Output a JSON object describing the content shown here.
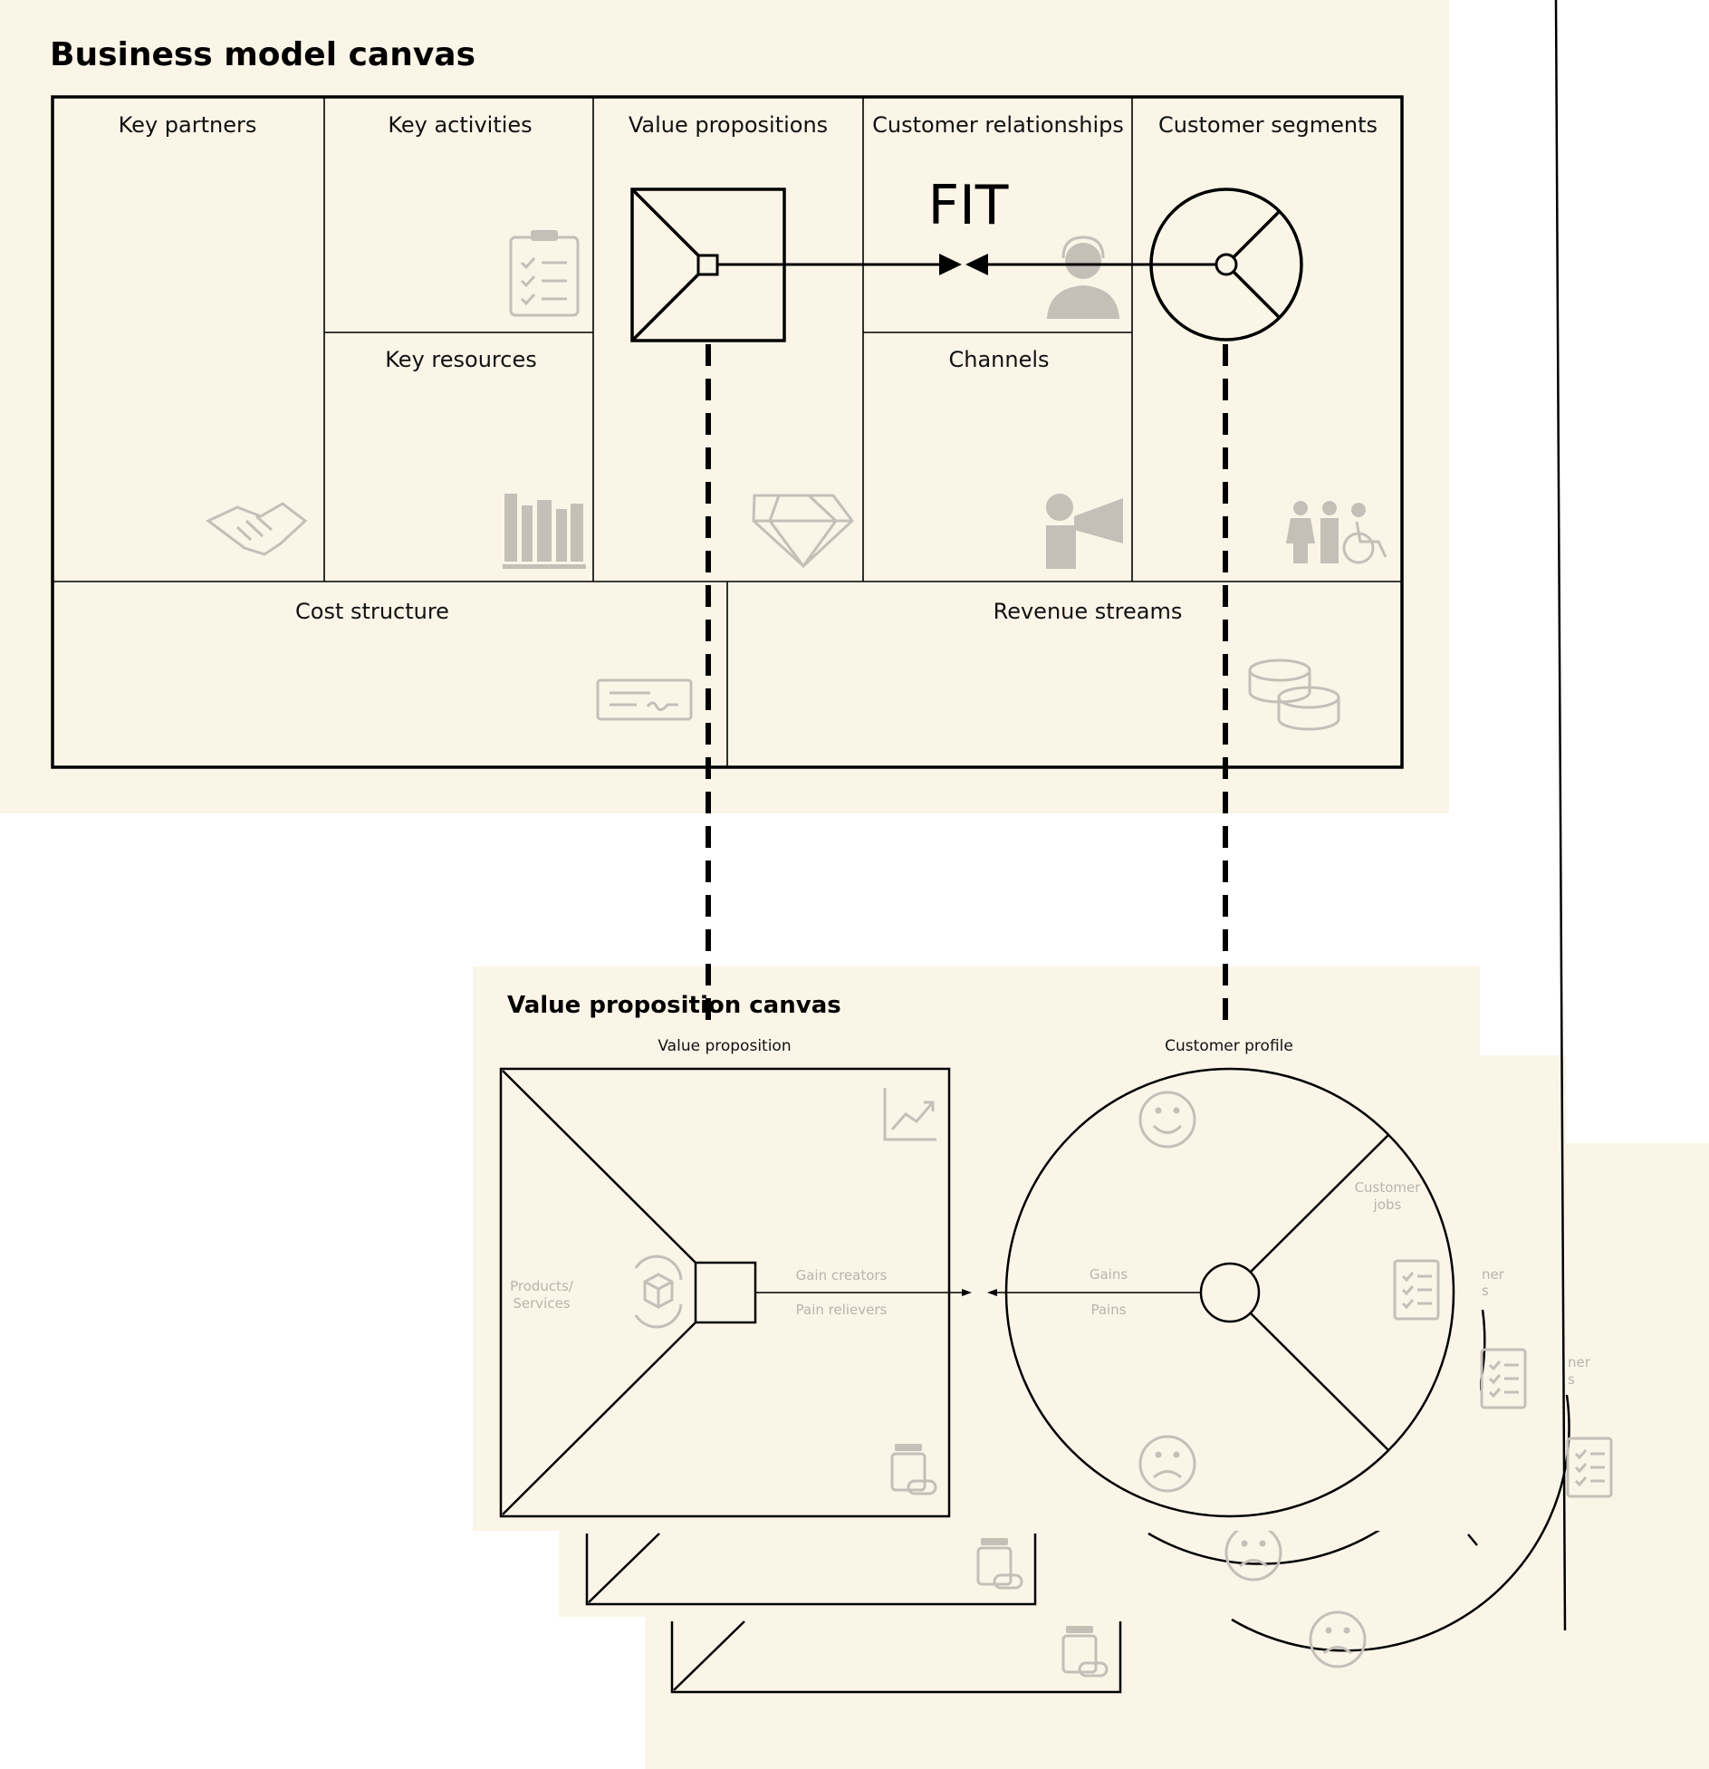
{
  "bmc": {
    "title": "Business model canvas",
    "cells": {
      "key_partners": "Key partners",
      "key_activities": "Key activities",
      "key_resources": "Key resources",
      "value_propositions": "Value propositions",
      "customer_relationships": "Customer relationships",
      "channels": "Channels",
      "customer_segments": "Customer segments",
      "cost_structure": "Cost structure",
      "revenue_streams": "Revenue streams"
    },
    "fit_label": "FIT",
    "icons": {
      "key_partners": "handshake-icon",
      "key_activities": "clipboard-checklist-icon",
      "key_resources": "books-icon",
      "value_propositions": "diamond-icon",
      "customer_relationships": "headset-person-icon",
      "channels": "megaphone-person-icon",
      "customer_segments": "people-wheelchair-icon",
      "cost_structure": "cheque-icon",
      "revenue_streams": "coins-icon"
    }
  },
  "vpc": {
    "title": "Value proposition canvas",
    "value_proposition_label": "Value proposition",
    "customer_profile_label": "Customer profile",
    "products_services_line1": "Products/",
    "products_services_line2": "Services",
    "gain_creators": "Gain creators",
    "pain_relievers": "Pain relievers",
    "gains": "Gains",
    "pains": "Pains",
    "customer_jobs_line1": "Customer",
    "customer_jobs_line2": "jobs",
    "stack_fragment_a": "ner",
    "stack_fragment_b": "s",
    "icons": {
      "gain_creators": "chart-icon",
      "products_services": "box-cycle-icon",
      "pain_relievers": "medicine-icon",
      "gains": "smile-icon",
      "pains": "frown-icon",
      "customer_jobs": "checklist-icon"
    }
  },
  "colors": {
    "paper": "#fbf5e8",
    "line": "#000000",
    "icon": "#c4bfb7",
    "faint_text": "#b9b4ac"
  }
}
